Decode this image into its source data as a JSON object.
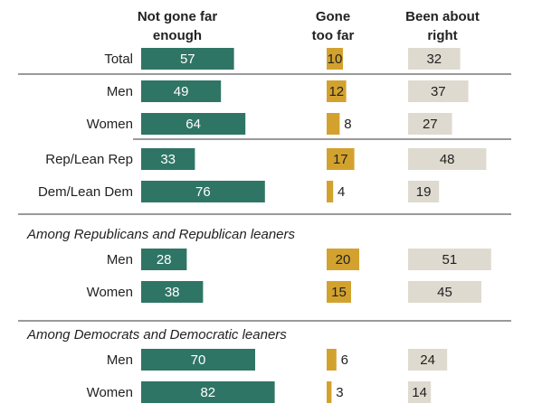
{
  "chart_data": {
    "type": "bar",
    "title": "",
    "column_headers": [
      [
        "Not gone far",
        "enough"
      ],
      [
        "Gone",
        "too far"
      ],
      [
        "Been about",
        "right"
      ]
    ],
    "series": [
      {
        "name": "Not gone far enough",
        "color": "#2f7565"
      },
      {
        "name": "Gone too far",
        "color": "#d3a22e"
      },
      {
        "name": "Been about right",
        "color": "#dedad0"
      }
    ],
    "rows": [
      {
        "label": "Total",
        "values": [
          57,
          10,
          32
        ]
      },
      {
        "label": "Men",
        "values": [
          49,
          12,
          37
        ]
      },
      {
        "label": "Women",
        "values": [
          64,
          8,
          27
        ]
      },
      {
        "label": "Rep/Lean Rep",
        "values": [
          33,
          17,
          48
        ]
      },
      {
        "label": "Dem/Lean Dem",
        "values": [
          76,
          4,
          19
        ]
      },
      {
        "section": "Among Republicans and Republican leaners"
      },
      {
        "label": "Men",
        "values": [
          28,
          20,
          51
        ]
      },
      {
        "label": "Women",
        "values": [
          38,
          15,
          45
        ]
      },
      {
        "section": "Among Democrats and Democratic leaners"
      },
      {
        "label": "Men",
        "values": [
          70,
          6,
          24
        ]
      },
      {
        "label": "Women",
        "values": [
          82,
          3,
          14
        ]
      }
    ]
  }
}
